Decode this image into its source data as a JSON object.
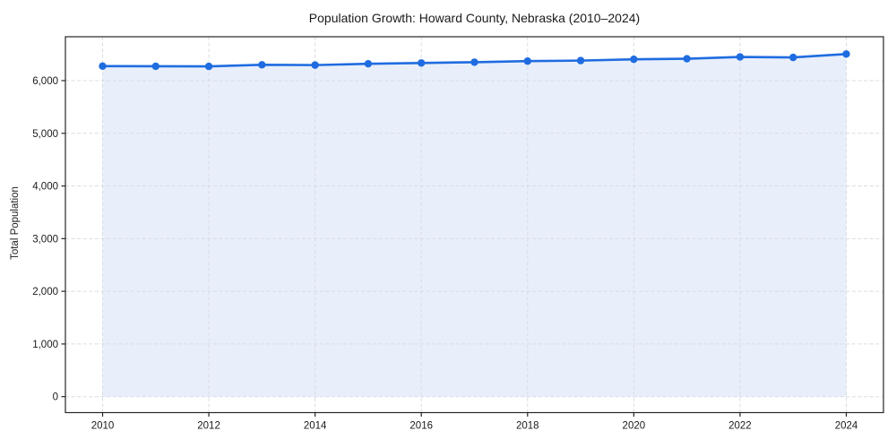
{
  "page": {
    "background": "#ffffff"
  },
  "chart_data": {
    "type": "area",
    "title": "Population Growth: Howard County, Nebraska (2010–2024)",
    "xlabel": "",
    "ylabel": "Total Population",
    "x": [
      2010,
      2011,
      2012,
      2013,
      2014,
      2015,
      2016,
      2017,
      2018,
      2019,
      2020,
      2021,
      2022,
      2023,
      2024
    ],
    "series": [
      {
        "name": "Total Population",
        "values": [
          6275,
          6272,
          6270,
          6300,
          6295,
          6320,
          6335,
          6350,
          6370,
          6380,
          6405,
          6415,
          6450,
          6440,
          6505
        ]
      }
    ],
    "xticks": [
      2010,
      2012,
      2014,
      2016,
      2018,
      2020,
      2022,
      2024
    ],
    "yticks": [
      0,
      1000,
      2000,
      3000,
      4000,
      5000,
      6000
    ],
    "xlim": [
      2009.3,
      2024.7
    ],
    "ylim": [
      -303,
      6833
    ],
    "grid": true,
    "grid_style": "dashed",
    "legend": false,
    "marker": "circle",
    "line_color": "#1f6ce0",
    "fill_color": "#e8effb",
    "grid_color": "#d8dce3",
    "axis_color": "#262626",
    "text_color": "#1a1a1a"
  }
}
